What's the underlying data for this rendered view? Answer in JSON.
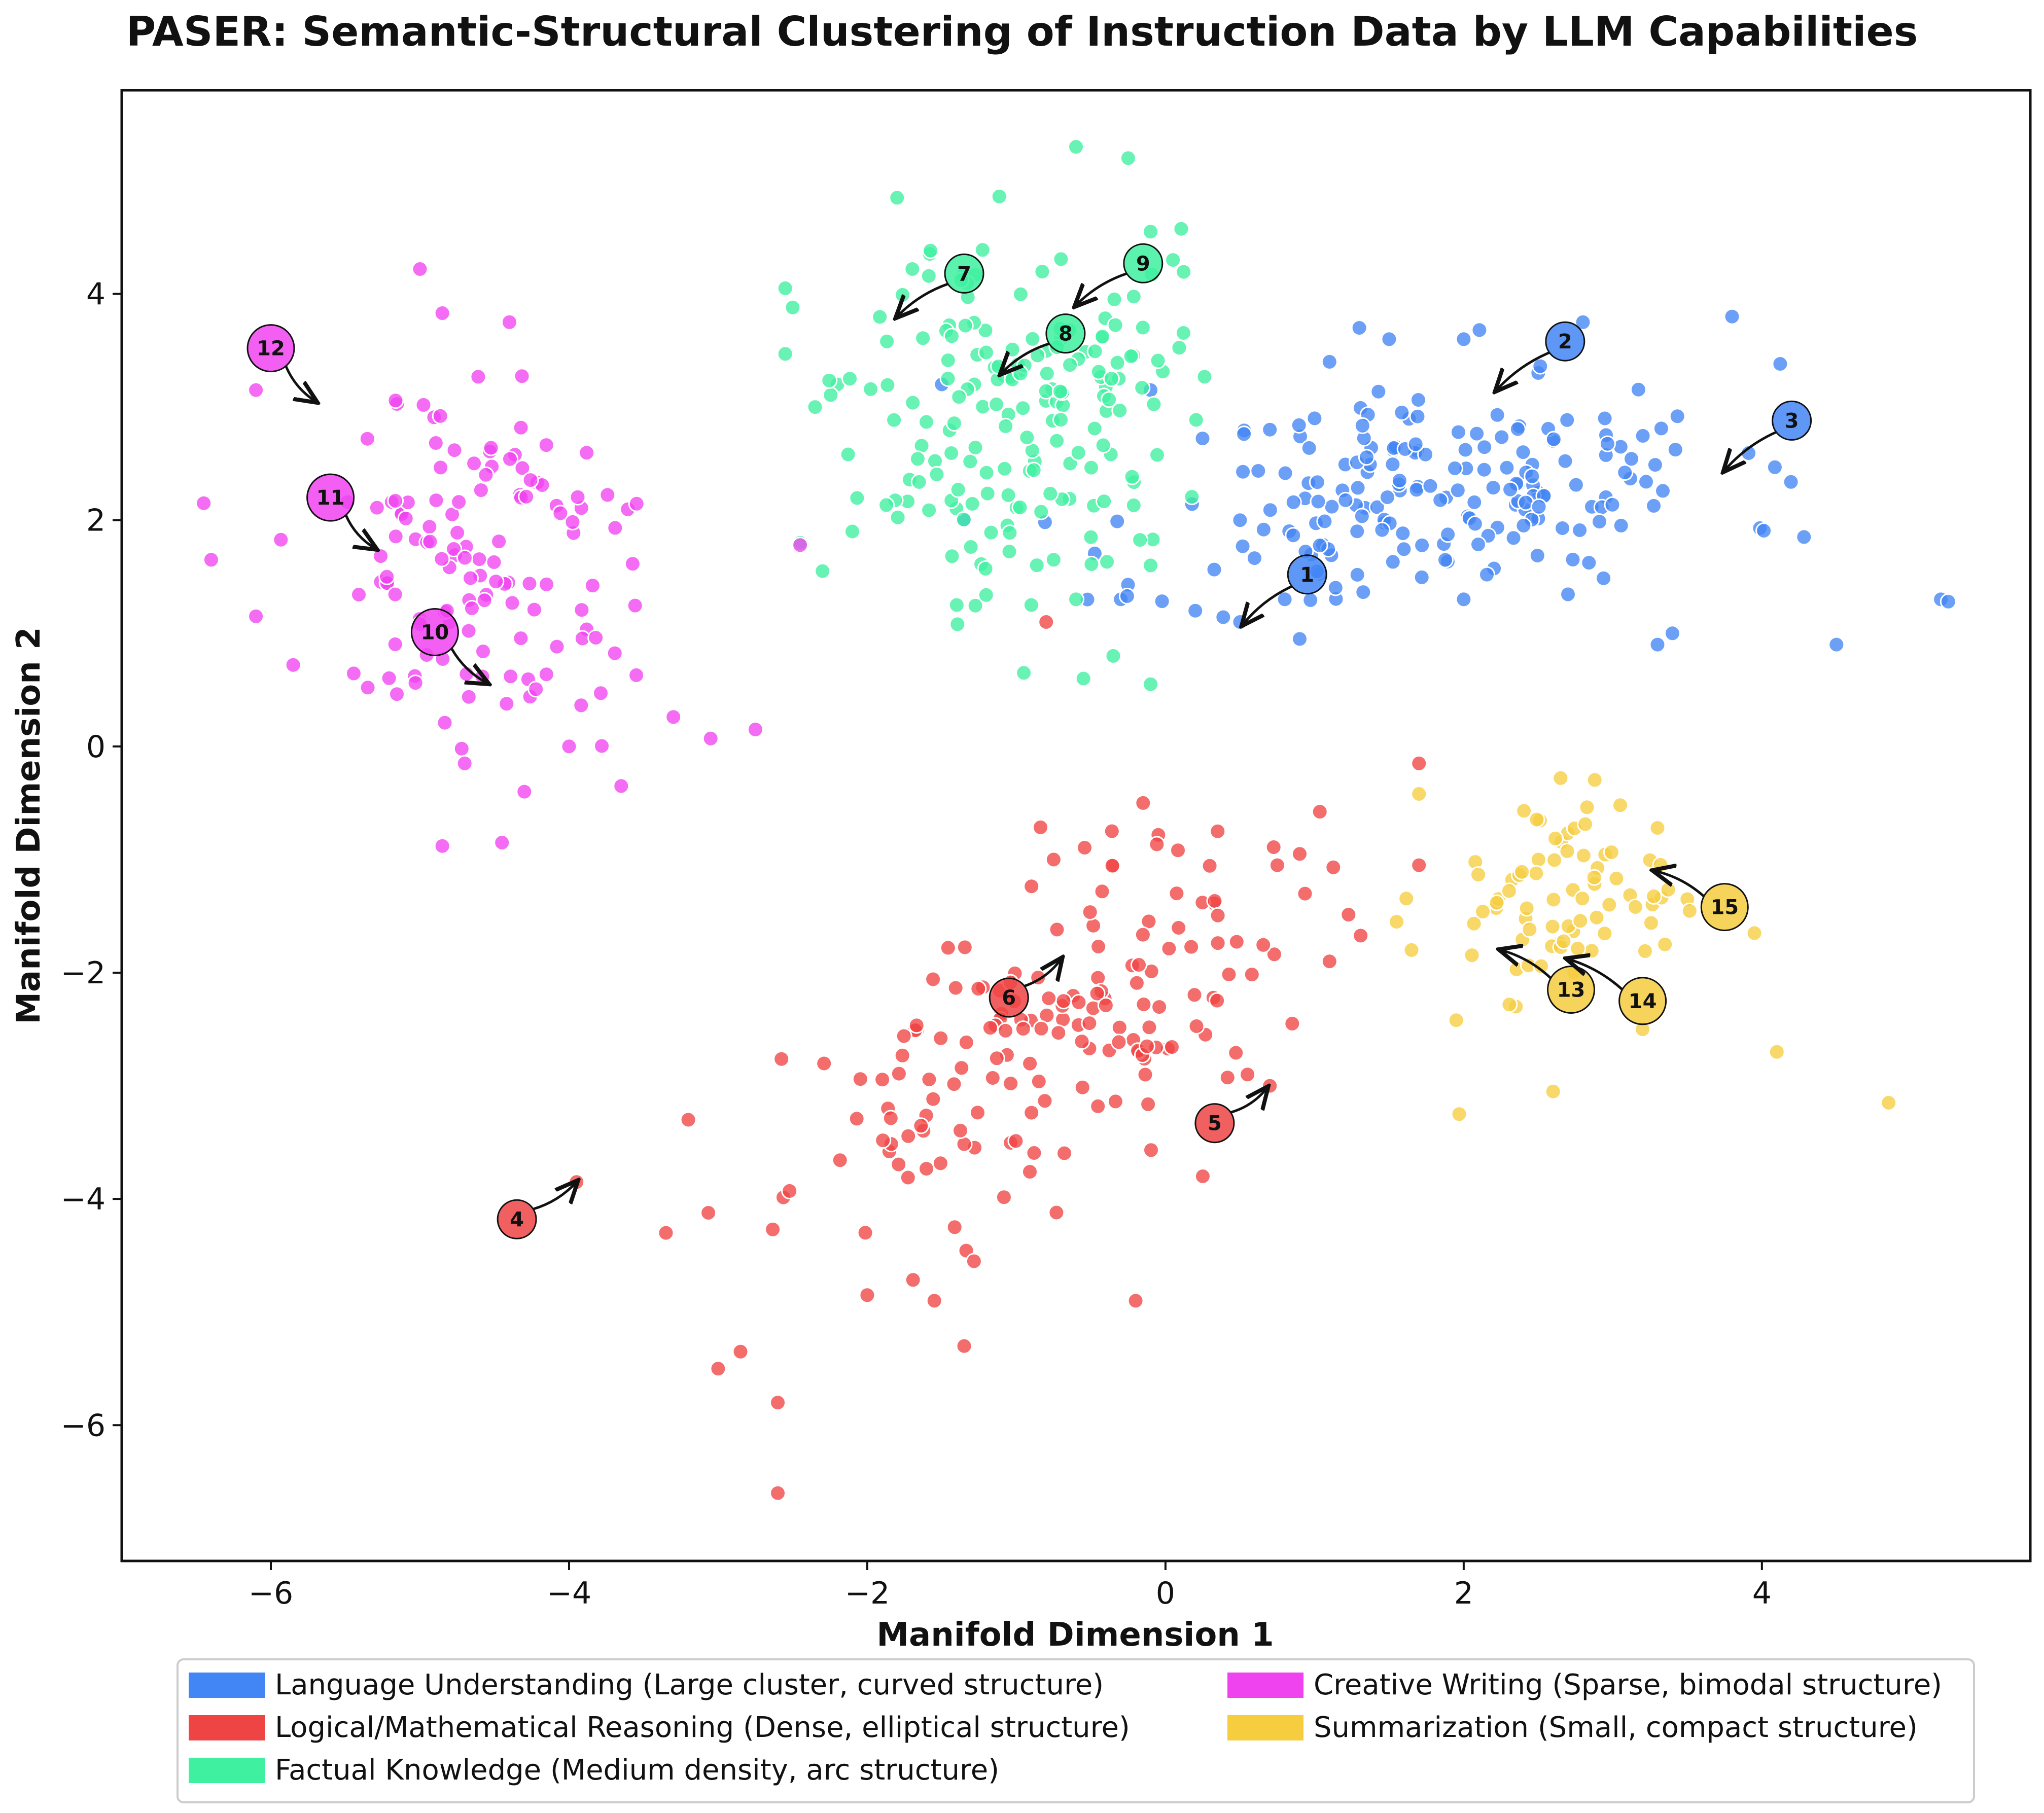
{
  "chart_data": {
    "type": "scatter",
    "title": "PASER: Semantic-Structural Clustering of Instruction Data by LLM Capabilities",
    "xlabel": "Manifold Dimension 1",
    "ylabel": "Manifold Dimension 2",
    "xlim": [
      -7.0,
      5.8
    ],
    "ylim": [
      -7.2,
      5.8
    ],
    "xticks": [
      -6,
      -4,
      -2,
      0,
      2,
      4
    ],
    "yticks": [
      -6,
      -4,
      -2,
      0,
      2,
      4
    ],
    "xtick_labels": [
      "−6",
      "−4",
      "−2",
      "0",
      "2",
      "4"
    ],
    "ytick_labels": [
      "−6",
      "−4",
      "−2",
      "0",
      "2",
      "4"
    ],
    "grid": false,
    "legend_position": "bottom-center",
    "series": [
      {
        "name": "Language Understanding (Large cluster, curved structure)",
        "color": "#4285f4",
        "center": [
          1.9,
          2.3
        ],
        "spread": [
          1.55,
          0.8
        ],
        "count": 190,
        "seed": 11,
        "points": [
          [
            -0.3,
            1.3
          ],
          [
            0.2,
            1.2
          ],
          [
            0.5,
            1.1
          ],
          [
            0.8,
            1.3
          ],
          [
            0.9,
            0.95
          ],
          [
            1.1,
            3.4
          ],
          [
            1.3,
            3.7
          ],
          [
            1.5,
            3.6
          ],
          [
            2.0,
            3.6
          ],
          [
            2.6,
            2.7
          ],
          [
            2.8,
            3.75
          ],
          [
            3.8,
            3.8
          ],
          [
            4.5,
            0.9
          ],
          [
            5.2,
            1.3
          ],
          [
            5.25,
            1.28
          ],
          [
            -1.5,
            3.2
          ],
          [
            -1.35,
            2.0
          ],
          [
            0.5,
            2.0
          ],
          [
            0.7,
            2.8
          ],
          [
            1.0,
            2.9
          ],
          [
            3.4,
            1.0
          ],
          [
            3.3,
            0.9
          ],
          [
            2.0,
            1.3
          ],
          [
            -0.1,
            3.15
          ]
        ]
      },
      {
        "name": "Logical/Mathematical Reasoning (Dense, elliptical structure)",
        "color": "#ef4444",
        "center": [
          -0.8,
          -2.6
        ],
        "spread": [
          1.35,
          1.0
        ],
        "count": 165,
        "seed": 23,
        "points": [
          [
            -2.6,
            -6.6
          ],
          [
            -2.6,
            -5.8
          ],
          [
            -3.0,
            -5.5
          ],
          [
            -2.85,
            -5.35
          ],
          [
            -1.35,
            -5.3
          ],
          [
            -2.0,
            -4.85
          ],
          [
            -1.55,
            -4.9
          ],
          [
            -0.2,
            -4.9
          ],
          [
            -3.35,
            -4.3
          ],
          [
            -3.95,
            -3.85
          ],
          [
            -3.2,
            -3.3
          ],
          [
            1.7,
            -0.15
          ],
          [
            -0.15,
            -0.5
          ],
          [
            0.35,
            -0.75
          ],
          [
            0.9,
            -0.95
          ],
          [
            1.1,
            -1.9
          ],
          [
            0.85,
            -2.45
          ],
          [
            0.7,
            -3.0
          ],
          [
            0.55,
            -2.9
          ],
          [
            0.25,
            -3.8
          ],
          [
            1.7,
            -1.05
          ],
          [
            0.75,
            -1.05
          ],
          [
            -0.35,
            -1.05
          ],
          [
            -0.75,
            -1.0
          ],
          [
            -0.8,
            1.1
          ]
        ]
      },
      {
        "name": "Factual Knowledge (Medium density, arc structure)",
        "color": "#3ef0a0",
        "center": [
          -1.0,
          3.0
        ],
        "spread": [
          0.85,
          1.25
        ],
        "count": 175,
        "seed": 37,
        "points": [
          [
            -2.55,
            4.05
          ],
          [
            -2.5,
            3.88
          ],
          [
            -2.55,
            3.47
          ],
          [
            -2.35,
            3.0
          ],
          [
            -2.2,
            3.2
          ],
          [
            -2.3,
            1.55
          ],
          [
            -2.1,
            1.9
          ],
          [
            -1.8,
            4.85
          ],
          [
            -0.6,
            5.3
          ],
          [
            -0.25,
            5.2
          ],
          [
            -0.1,
            4.55
          ],
          [
            0.05,
            4.3
          ],
          [
            -0.55,
            0.6
          ],
          [
            -0.35,
            0.8
          ],
          [
            -0.1,
            0.55
          ],
          [
            -0.1,
            1.6
          ],
          [
            -0.75,
            1.65
          ],
          [
            -0.95,
            0.65
          ],
          [
            -1.4,
            1.25
          ],
          [
            -2.45,
            1.8
          ],
          [
            -0.6,
            1.3
          ],
          [
            -0.9,
            1.25
          ],
          [
            -0.5,
            1.85
          ]
        ]
      },
      {
        "name": "Creative Writing (Sparse, bimodal structure)",
        "color": "#f043f0",
        "center": [
          -4.6,
          1.6
        ],
        "spread": [
          0.85,
          1.25
        ],
        "count": 125,
        "seed": 51,
        "points": [
          [
            -6.45,
            2.15
          ],
          [
            -6.4,
            1.65
          ],
          [
            -6.1,
            1.15
          ],
          [
            -6.1,
            3.15
          ],
          [
            -5.85,
            0.72
          ],
          [
            -5.0,
            4.22
          ],
          [
            -4.85,
            3.83
          ],
          [
            -4.4,
            3.75
          ],
          [
            -4.85,
            -0.88
          ],
          [
            -4.45,
            -0.85
          ],
          [
            -4.3,
            -0.4
          ],
          [
            -3.65,
            -0.35
          ],
          [
            -4.0,
            0.0
          ],
          [
            -2.75,
            0.15
          ],
          [
            -3.05,
            0.07
          ],
          [
            -3.3,
            0.26
          ],
          [
            -4.72,
            -0.02
          ],
          [
            -4.7,
            -0.15
          ],
          [
            -5.35,
            0.52
          ],
          [
            -2.45,
            1.78
          ]
        ]
      },
      {
        "name": "Summarization (Small, compact structure)",
        "color": "#f5cd3f",
        "center": [
          2.7,
          -1.4
        ],
        "spread": [
          0.6,
          0.7
        ],
        "count": 70,
        "seed": 67,
        "points": [
          [
            4.85,
            -3.15
          ],
          [
            4.1,
            -2.7
          ],
          [
            3.95,
            -1.65
          ],
          [
            2.6,
            -3.05
          ],
          [
            1.97,
            -3.25
          ],
          [
            2.35,
            -2.3
          ],
          [
            1.95,
            -2.42
          ],
          [
            3.2,
            -2.5
          ],
          [
            1.7,
            -0.42
          ],
          [
            2.65,
            -0.28
          ],
          [
            3.05,
            -0.52
          ],
          [
            3.3,
            -0.72
          ],
          [
            1.55,
            -1.55
          ],
          [
            1.65,
            -1.8
          ],
          [
            3.35,
            -1.75
          ],
          [
            3.5,
            -1.35
          ]
        ]
      }
    ],
    "annotations": [
      {
        "label": "1",
        "series": 0,
        "text_at": [
          0.95,
          1.52
        ],
        "target": [
          0.52,
          1.08
        ]
      },
      {
        "label": "2",
        "series": 0,
        "text_at": [
          2.68,
          3.58
        ],
        "target": [
          2.22,
          3.15
        ]
      },
      {
        "label": "3",
        "series": 0,
        "text_at": [
          4.2,
          2.88
        ],
        "target": [
          3.75,
          2.44
        ]
      },
      {
        "label": "4",
        "series": 1,
        "text_at": [
          -4.35,
          -4.18
        ],
        "target": [
          -3.95,
          -3.85
        ]
      },
      {
        "label": "5",
        "series": 1,
        "text_at": [
          0.33,
          -3.33
        ],
        "target": [
          0.68,
          -3.02
        ]
      },
      {
        "label": "6",
        "series": 1,
        "text_at": [
          -1.05,
          -2.22
        ],
        "target": [
          -0.7,
          -1.88
        ]
      },
      {
        "label": "7",
        "series": 2,
        "text_at": [
          -1.35,
          4.18
        ],
        "target": [
          -1.8,
          3.8
        ]
      },
      {
        "label": "8",
        "series": 2,
        "text_at": [
          -0.67,
          3.65
        ],
        "target": [
          -1.1,
          3.3
        ]
      },
      {
        "label": "9",
        "series": 2,
        "text_at": [
          -0.15,
          4.27
        ],
        "target": [
          -0.6,
          3.9
        ]
      },
      {
        "label": "10",
        "series": 3,
        "text_at": [
          -4.9,
          1.01
        ],
        "target": [
          -4.55,
          0.56
        ]
      },
      {
        "label": "11",
        "series": 3,
        "text_at": [
          -5.6,
          2.2
        ],
        "target": [
          -5.3,
          1.75
        ]
      },
      {
        "label": "12",
        "series": 3,
        "text_at": [
          -6.0,
          3.52
        ],
        "target": [
          -5.7,
          3.05
        ]
      },
      {
        "label": "13",
        "series": 4,
        "text_at": [
          2.72,
          -2.15
        ],
        "target": [
          2.25,
          -1.8
        ]
      },
      {
        "label": "14",
        "series": 4,
        "text_at": [
          3.2,
          -2.25
        ],
        "target": [
          2.7,
          -1.88
        ]
      },
      {
        "label": "15",
        "series": 4,
        "text_at": [
          3.75,
          -1.42
        ],
        "target": [
          3.28,
          -1.1
        ]
      }
    ]
  }
}
